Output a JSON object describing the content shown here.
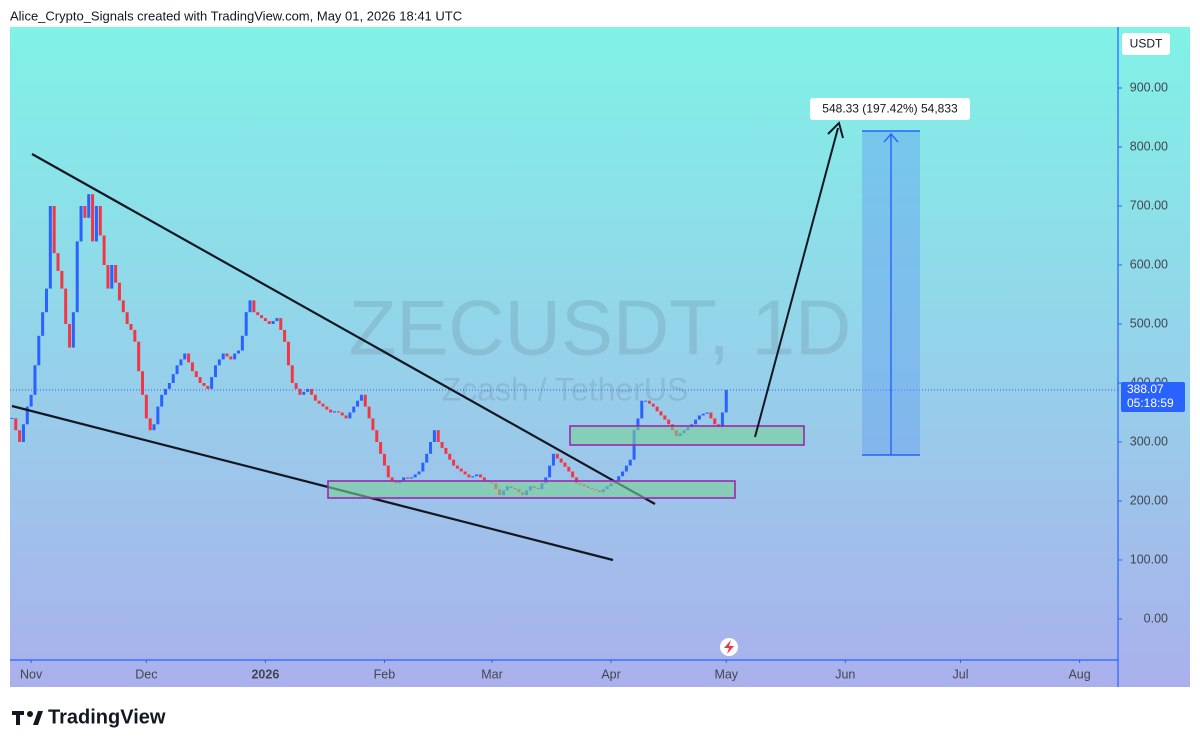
{
  "header": "Alice_Crypto_Signals created with TradingView.com, May 01, 2026 18:41 UTC",
  "footer": "TradingView",
  "chart_data": {
    "type": "candlestick",
    "watermark": "ZECUSDT, 1D",
    "watermark_subtitle": "Zcash / TetherUS",
    "currency": "USDT",
    "last_price": 388.07,
    "last_price_label": "388.07",
    "countdown": "05:18:59",
    "measure_label": "548.33 (197.42%) 54,833",
    "up_color": "#2962ff",
    "down_color": "#f23645",
    "values": [
      340,
      320,
      300,
      330,
      360,
      380,
      430,
      480,
      520,
      560,
      700,
      620,
      590,
      560,
      500,
      460,
      520,
      640,
      700,
      680,
      720,
      640,
      700,
      650,
      600,
      560,
      600,
      570,
      540,
      520,
      500,
      490,
      470,
      420,
      380,
      340,
      320,
      330,
      360,
      380,
      390,
      400,
      415,
      430,
      440,
      450,
      435,
      420,
      410,
      400,
      395,
      390,
      410,
      430,
      440,
      450,
      445,
      440,
      450,
      455,
      480,
      520,
      540,
      520,
      515,
      510,
      505,
      500,
      505,
      510,
      490,
      470,
      430,
      400,
      390,
      380,
      385,
      390,
      380,
      370,
      365,
      360,
      355,
      350,
      352,
      350,
      345,
      340,
      350,
      360,
      370,
      380,
      360,
      340,
      320,
      300,
      280,
      260,
      240,
      235,
      230,
      235,
      240,
      238,
      240,
      245,
      250,
      265,
      280,
      300,
      320,
      300,
      290,
      280,
      270,
      260,
      255,
      250,
      245,
      240,
      242,
      245,
      240,
      235,
      232,
      230,
      220,
      210,
      218,
      225,
      222,
      220,
      215,
      210,
      218,
      225,
      222,
      220,
      230,
      240,
      260,
      280,
      272,
      265,
      258,
      250,
      240,
      230,
      228,
      225,
      222,
      220,
      218,
      215,
      220,
      225,
      230,
      235,
      242,
      250,
      260,
      270,
      320,
      340,
      370,
      370,
      365,
      360,
      352,
      345,
      338,
      330,
      320,
      310,
      315,
      320,
      325,
      330,
      338,
      345,
      348,
      350,
      340,
      330,
      325,
      350,
      388.07
    ],
    "xlim": [
      -0.5,
      288
    ],
    "xticks": [
      {
        "value": 5,
        "label": "Nov"
      },
      {
        "value": 35,
        "label": "Dec"
      },
      {
        "value": 66,
        "label": "2026"
      },
      {
        "value": 97,
        "label": "Feb"
      },
      {
        "value": 125,
        "label": "Mar"
      },
      {
        "value": 156,
        "label": "Apr"
      },
      {
        "value": 186,
        "label": "May"
      },
      {
        "value": 217,
        "label": "Jun"
      },
      {
        "value": 247,
        "label": "Jul"
      },
      {
        "value": 278,
        "label": "Aug"
      }
    ],
    "ylim": [
      -69.5,
      1003.4
    ],
    "yticks": [
      {
        "value": 0,
        "label": "0.00"
      },
      {
        "value": 100,
        "label": "100.00"
      },
      {
        "value": 200,
        "label": "200.00"
      },
      {
        "value": 300,
        "label": "300.00"
      },
      {
        "value": 400,
        "label": "400.00"
      },
      {
        "value": 500,
        "label": "500.00"
      },
      {
        "value": 600,
        "label": "600.00"
      },
      {
        "value": 700,
        "label": "700.00"
      },
      {
        "value": 800,
        "label": "800.00"
      },
      {
        "value": 900,
        "label": "900.00"
      }
    ]
  }
}
